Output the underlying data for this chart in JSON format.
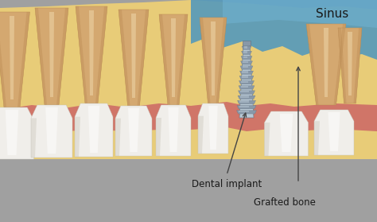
{
  "bg_color": "#a0a0a0",
  "jaw_bone_color": "#e8cc78",
  "jaw_bone_light": "#f0dc98",
  "gum_color": "#cc6666",
  "gum_pink": "#e07878",
  "tooth_white": "#f0eeea",
  "tooth_white2": "#e8e6e0",
  "tooth_shadow": "#c8c4b8",
  "tooth_root_color": "#d4a870",
  "tooth_root_light": "#e8c890",
  "tooth_root_dark": "#b88850",
  "implant_light": "#b8c8d4",
  "implant_mid": "#8898a8",
  "implant_dark": "#607080",
  "sinus_color": "#5599bb",
  "sinus_light": "#77bbdd",
  "sinus_text": "Sinus",
  "label1": "Dental implant",
  "label2": "Grafted bone",
  "text_color": "#1a1a1a",
  "arrow_color": "#444444"
}
